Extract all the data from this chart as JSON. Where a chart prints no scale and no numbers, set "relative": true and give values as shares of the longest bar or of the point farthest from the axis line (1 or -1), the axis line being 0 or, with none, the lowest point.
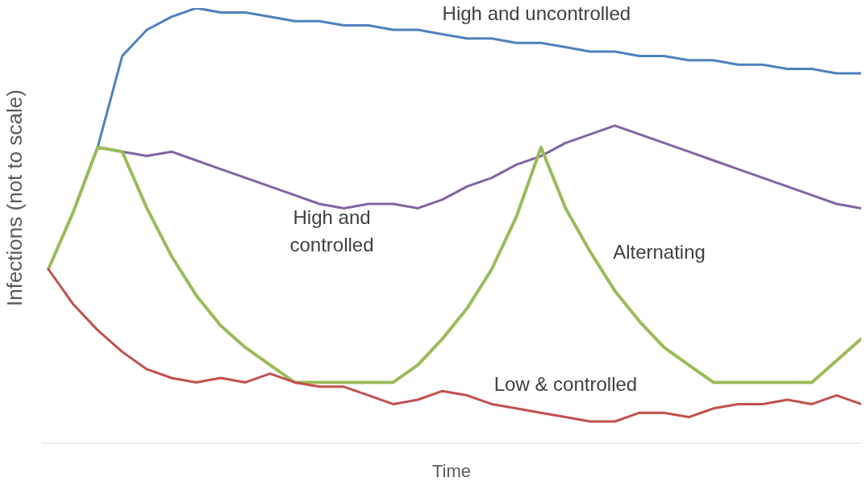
{
  "chart_data": {
    "type": "line",
    "relative": true,
    "xlabel": "Time",
    "ylabel": "Infections (not to scale)",
    "legend": false,
    "grid": false,
    "marker": "none",
    "line_style": "solid",
    "categories": [
      null,
      null,
      null,
      null,
      null,
      null,
      null,
      null,
      null,
      null,
      null,
      null,
      null,
      null,
      null,
      null,
      null,
      null,
      null,
      null,
      null,
      null,
      null,
      null,
      null,
      null,
      null,
      null,
      null,
      null,
      null,
      null,
      null,
      null
    ],
    "series": [
      {
        "name": "High and uncontrolled",
        "color": "#4f81bd",
        "values": [
          0.4,
          0.53,
          0.68,
          0.89,
          0.95,
          0.98,
          1.0,
          0.99,
          0.99,
          0.98,
          0.97,
          0.97,
          0.96,
          0.96,
          0.95,
          0.95,
          0.94,
          0.93,
          0.93,
          0.92,
          0.92,
          0.91,
          0.9,
          0.9,
          0.89,
          0.89,
          0.88,
          0.88,
          0.87,
          0.87,
          0.86,
          0.86,
          0.85,
          0.85
        ]
      },
      {
        "name": "High and controlled",
        "color": "#8064a2",
        "values": [
          null,
          null,
          0.68,
          0.67,
          0.66,
          0.67,
          0.65,
          0.63,
          0.61,
          0.59,
          0.57,
          0.55,
          0.54,
          0.55,
          0.55,
          0.54,
          0.56,
          0.59,
          0.61,
          0.64,
          0.66,
          0.69,
          0.71,
          0.73,
          0.71,
          0.69,
          0.67,
          0.65,
          0.63,
          0.61,
          0.59,
          0.57,
          0.55,
          0.54
        ]
      },
      {
        "name": "Alternating",
        "color": "#9bbb59",
        "values": [
          0.4,
          0.53,
          0.68,
          0.67,
          0.54,
          0.43,
          0.34,
          0.27,
          0.22,
          0.18,
          0.14,
          0.14,
          0.14,
          0.14,
          0.14,
          0.18,
          0.24,
          0.31,
          0.4,
          0.52,
          0.68,
          0.54,
          0.44,
          0.35,
          0.28,
          0.22,
          0.18,
          0.14,
          0.14,
          0.14,
          0.14,
          0.14,
          0.19,
          0.24
        ]
      },
      {
        "name": "Low & controlled",
        "color": "#c0504d",
        "values": [
          0.4,
          0.32,
          0.26,
          0.21,
          0.17,
          0.15,
          0.14,
          0.15,
          0.14,
          0.16,
          0.14,
          0.13,
          0.13,
          0.11,
          0.09,
          0.1,
          0.12,
          0.11,
          0.09,
          0.08,
          0.07,
          0.06,
          0.05,
          0.05,
          0.07,
          0.07,
          0.06,
          0.08,
          0.09,
          0.09,
          0.1,
          0.09,
          0.11,
          0.09
        ]
      }
    ]
  }
}
